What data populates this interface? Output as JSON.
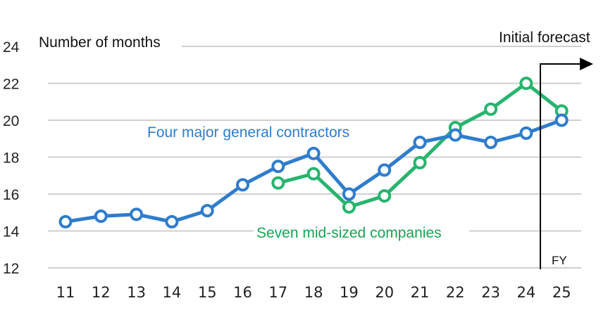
{
  "chart_data": {
    "type": "line",
    "ylabel": "Number of months",
    "ylim": [
      12,
      24
    ],
    "yticks": [
      12,
      14,
      16,
      18,
      20,
      22,
      24
    ],
    "x": [
      "11",
      "12",
      "13",
      "14",
      "15",
      "16",
      "17",
      "18",
      "19",
      "20",
      "21",
      "22",
      "23",
      "24",
      "25"
    ],
    "grid": true,
    "forecast_label": "Initial forecast",
    "axis_unit": "FY",
    "series": [
      {
        "name": "Four major general contractors",
        "color": "#2f7ccd",
        "values": [
          14.5,
          14.8,
          14.9,
          14.5,
          15.1,
          16.5,
          17.5,
          18.2,
          16.0,
          17.3,
          18.8,
          19.2,
          18.8,
          19.3,
          20.0
        ]
      },
      {
        "name": "Seven mid-sized companies",
        "color": "#27b46e",
        "values": [
          null,
          null,
          null,
          null,
          null,
          null,
          16.6,
          17.1,
          15.3,
          15.9,
          17.7,
          19.6,
          20.6,
          22.0,
          20.5
        ]
      }
    ]
  }
}
